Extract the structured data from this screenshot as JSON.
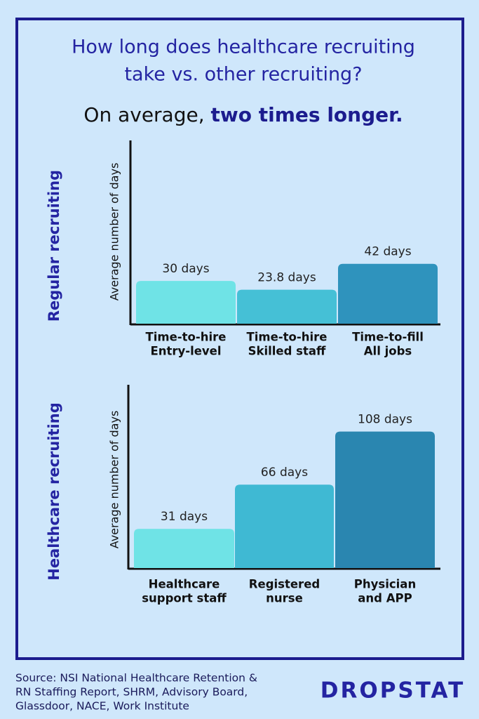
{
  "title": [
    "How long does healthcare recruiting",
    "take vs. other recruiting?"
  ],
  "subtitle": [
    "On average,",
    "two times longer."
  ],
  "source": [
    "Source: NSI National Healthcare Retention &",
    "RN Staffing Report, SHRM, Advisory Board,",
    "Glassdoor, NACE, Work Institute"
  ],
  "brand": "DROPSTAT",
  "chart_data": [
    {
      "type": "bar",
      "label": "Regular recruiting",
      "ylabel": "Average number of days",
      "categories": [
        [
          "Time-to-hire",
          "Entry-level"
        ],
        [
          "Time-to-hire",
          "Skilled staff"
        ],
        [
          "Time-to-fill",
          "All jobs"
        ]
      ],
      "values": [
        30,
        23.8,
        42
      ],
      "value_labels": [
        "30 days",
        "23.8 days",
        "42 days"
      ],
      "colors": [
        "#6fe3e6",
        "#45c0d6",
        "#2f93bd"
      ]
    },
    {
      "type": "bar",
      "label": "Healthcare recruiting",
      "ylabel": "Average number of days",
      "categories": [
        [
          "Healthcare",
          "support staff"
        ],
        [
          "Registered",
          "nurse"
        ],
        [
          "Physician",
          "and APP"
        ]
      ],
      "values": [
        31,
        66,
        108
      ],
      "value_labels": [
        "31 days",
        "66 days",
        "108 days"
      ],
      "colors": [
        "#6fe3e6",
        "#3fb9d3",
        "#2a86b0"
      ]
    }
  ]
}
